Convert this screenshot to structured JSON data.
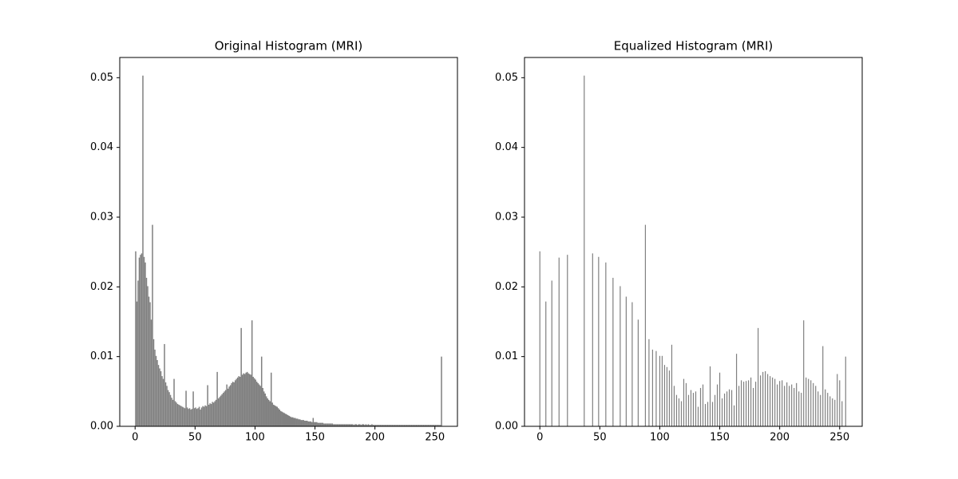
{
  "chart_data": [
    {
      "type": "histogram",
      "title": "Original Histogram (MRI)",
      "color": "#808080",
      "bins": [
        0,
        1,
        2,
        3,
        4,
        5,
        6,
        7,
        8,
        9,
        10,
        11,
        12,
        13,
        14,
        15,
        16,
        17,
        18,
        19,
        20,
        21,
        22,
        23,
        24,
        25,
        26,
        27,
        28,
        29,
        30,
        31,
        32,
        33,
        34,
        35,
        36,
        37,
        38,
        39,
        40,
        41,
        42,
        43,
        44,
        45,
        46,
        47,
        48,
        49,
        50,
        51,
        52,
        53,
        54,
        55,
        56,
        57,
        58,
        59,
        60,
        61,
        62,
        63,
        64,
        65,
        66,
        67,
        68,
        69,
        70,
        71,
        72,
        73,
        74,
        75,
        76,
        77,
        78,
        79,
        80,
        81,
        82,
        83,
        84,
        85,
        86,
        87,
        88,
        89,
        90,
        91,
        92,
        93,
        94,
        95,
        96,
        97,
        98,
        99,
        100,
        101,
        102,
        103,
        104,
        105,
        106,
        107,
        108,
        109,
        110,
        111,
        112,
        113,
        114,
        115,
        116,
        117,
        118,
        119,
        120,
        121,
        122,
        123,
        124,
        125,
        126,
        127,
        128,
        129,
        130,
        131,
        132,
        133,
        134,
        135,
        136,
        137,
        138,
        139,
        140,
        141,
        142,
        143,
        144,
        145,
        146,
        147,
        148,
        149,
        150,
        151,
        152,
        153,
        154,
        155,
        156,
        157,
        158,
        159,
        160,
        161,
        162,
        163,
        164,
        165,
        166,
        167,
        168,
        169,
        170,
        171,
        172,
        173,
        174,
        175,
        176,
        177,
        178,
        179,
        180,
        181,
        182,
        183,
        184,
        185,
        186,
        187,
        188,
        189,
        190,
        191,
        192,
        193,
        194,
        195,
        196,
        197,
        198,
        199,
        200,
        201,
        202,
        203,
        204,
        205,
        206,
        207,
        208,
        209,
        210,
        211,
        212,
        213,
        214,
        215,
        216,
        217,
        218,
        219,
        220,
        221,
        222,
        223,
        224,
        225,
        226,
        227,
        228,
        229,
        230,
        231,
        232,
        233,
        234,
        235,
        236,
        237,
        238,
        239,
        240,
        241,
        242,
        243,
        244,
        245,
        246,
        247,
        248,
        249,
        250,
        251,
        252,
        253,
        254,
        255,
        256
      ],
      "values": [
        0.0251,
        0.0179,
        0.0209,
        0.0242,
        0.0246,
        0.0248,
        0.0503,
        0.0243,
        0.0235,
        0.0213,
        0.0201,
        0.0186,
        0.0178,
        0.0153,
        0.0289,
        0.0125,
        0.011,
        0.0101,
        0.0095,
        0.0088,
        0.0083,
        0.0079,
        0.0072,
        0.0068,
        0.0118,
        0.0063,
        0.0058,
        0.0052,
        0.0049,
        0.0045,
        0.0041,
        0.0038,
        0.0068,
        0.0036,
        0.0034,
        0.0032,
        0.0031,
        0.003,
        0.0029,
        0.0028,
        0.0027,
        0.0026,
        0.0051,
        0.0027,
        0.0025,
        0.0026,
        0.0024,
        0.0025,
        0.005,
        0.0026,
        0.0027,
        0.0025,
        0.0026,
        0.0028,
        0.0024,
        0.0027,
        0.0029,
        0.0028,
        0.003,
        0.0029,
        0.0059,
        0.0031,
        0.0033,
        0.0032,
        0.0035,
        0.0034,
        0.0036,
        0.0038,
        0.0078,
        0.004,
        0.0042,
        0.0044,
        0.0046,
        0.0048,
        0.005,
        0.0052,
        0.006,
        0.0054,
        0.0057,
        0.0059,
        0.0062,
        0.0064,
        0.0063,
        0.0066,
        0.0068,
        0.007,
        0.0072,
        0.0071,
        0.0141,
        0.0074,
        0.0076,
        0.0075,
        0.0077,
        0.0078,
        0.0076,
        0.0075,
        0.0074,
        0.0152,
        0.0071,
        0.0069,
        0.0067,
        0.0064,
        0.0062,
        0.006,
        0.0058,
        0.01,
        0.0055,
        0.005,
        0.0047,
        0.0043,
        0.004,
        0.0038,
        0.0036,
        0.0077,
        0.0034,
        0.0031,
        0.003,
        0.0029,
        0.0028,
        0.0026,
        0.0024,
        0.0022,
        0.0021,
        0.002,
        0.0019,
        0.0018,
        0.0017,
        0.0016,
        0.0015,
        0.0014,
        0.0013,
        0.0013,
        0.0012,
        0.0012,
        0.0011,
        0.0011,
        0.001,
        0.001,
        0.0009,
        0.0009,
        0.0009,
        0.0008,
        0.0008,
        0.0008,
        0.0007,
        0.0007,
        0.0007,
        0.0006,
        0.0012,
        0.0006,
        0.0006,
        0.0006,
        0.0005,
        0.0005,
        0.0005,
        0.0005,
        0.0005,
        0.0004,
        0.0004,
        0.0004,
        0.0004,
        0.0004,
        0.0004,
        0.0004,
        0.0004,
        0.0003,
        0.0003,
        0.0003,
        0.0003,
        0.0003,
        0.0003,
        0.0003,
        0.0003,
        0.0003,
        0.0003,
        0.0003,
        0.0003,
        0.0003,
        0.0003,
        0.0003,
        0.0003,
        0.0003,
        0.0002,
        0.0003,
        0.0003,
        0.0002,
        0.0003,
        0.0003,
        0.0002,
        0.0003,
        0.0003,
        0.0002,
        0.0003,
        0.0002,
        0.0003,
        0.0002,
        0.0002,
        0.0003,
        0.0002,
        0.0002,
        0.0002,
        0.0002,
        0.0002,
        0.0002,
        0.0002,
        0.0002,
        0.0002,
        0.0002,
        0.0002,
        0.0002,
        0.0002,
        0.0002,
        0.0002,
        0.0002,
        0.0002,
        0.0002,
        0.0002,
        0.0002,
        0.0002,
        0.0002,
        0.0002,
        0.0002,
        0.0002,
        0.0002,
        0.0002,
        0.0002,
        0.0002,
        0.0002,
        0.0002,
        0.0002,
        0.0002,
        0.0002,
        0.0002,
        0.0002,
        0.0002,
        0.0002,
        0.0002,
        0.0002,
        0.0002,
        0.0002,
        0.0002,
        0.0002,
        0.0002,
        0.0002,
        0.0002,
        0.0002,
        0.0002,
        0.0002,
        0.0002,
        0.0002,
        0.0002,
        0.0002,
        0.0002,
        0.0002,
        0.0002,
        0.01
      ],
      "xlim": [
        -12.8,
        268.8
      ],
      "xticks": [
        0,
        50,
        100,
        150,
        200,
        250
      ],
      "ylim": [
        0,
        0.0529
      ],
      "yticks": [
        {
          "value": 0,
          "label": "0.00"
        },
        0.01,
        0.02,
        0.03,
        0.04,
        0.05
      ]
    },
    {
      "type": "bar",
      "title": "Equalized Histogram (MRI)",
      "color": "#808080",
      "x": [
        0,
        5,
        10,
        16,
        23,
        37,
        44,
        49,
        55,
        61,
        67,
        72,
        77,
        82,
        88,
        91,
        94,
        97,
        100,
        102,
        104,
        106,
        108,
        110,
        112,
        114,
        116,
        118,
        120,
        122,
        124,
        126,
        128,
        130,
        132,
        134,
        136,
        138,
        140,
        142,
        144,
        146,
        148,
        150,
        152,
        154,
        156,
        158,
        160,
        162,
        164,
        166,
        168,
        170,
        172,
        174,
        176,
        178,
        180,
        182,
        184,
        186,
        188,
        190,
        192,
        194,
        196,
        198,
        200,
        202,
        204,
        206,
        208,
        210,
        212,
        214,
        216,
        218,
        220,
        222,
        224,
        226,
        228,
        230,
        232,
        234,
        236,
        238,
        240,
        242,
        244,
        246,
        248,
        250,
        252,
        255
      ],
      "values": [
        0.0251,
        0.0179,
        0.0209,
        0.0242,
        0.0246,
        0.0503,
        0.0248,
        0.0243,
        0.0235,
        0.0213,
        0.0201,
        0.0186,
        0.0178,
        0.0153,
        0.0289,
        0.0125,
        0.011,
        0.0108,
        0.0101,
        0.0101,
        0.0088,
        0.0085,
        0.008,
        0.0117,
        0.0058,
        0.0045,
        0.004,
        0.0036,
        0.0068,
        0.0062,
        0.0045,
        0.0052,
        0.0048,
        0.005,
        0.0028,
        0.0055,
        0.006,
        0.0032,
        0.0035,
        0.0086,
        0.0035,
        0.0045,
        0.006,
        0.0077,
        0.004,
        0.0047,
        0.005,
        0.0053,
        0.0052,
        0.003,
        0.0104,
        0.0058,
        0.0066,
        0.0064,
        0.0065,
        0.0066,
        0.007,
        0.0055,
        0.0064,
        0.0141,
        0.0073,
        0.0078,
        0.0079,
        0.0075,
        0.0072,
        0.007,
        0.0068,
        0.006,
        0.0065,
        0.0066,
        0.0058,
        0.0063,
        0.0058,
        0.006,
        0.0055,
        0.0062,
        0.005,
        0.0048,
        0.0152,
        0.007,
        0.0068,
        0.0066,
        0.0062,
        0.0058,
        0.005,
        0.0045,
        0.0115,
        0.0053,
        0.0048,
        0.0043,
        0.004,
        0.0038,
        0.0075,
        0.0066,
        0.0036,
        0.01
      ],
      "xlim": [
        -12.8,
        268.8
      ],
      "xticks": [
        0,
        50,
        100,
        150,
        200,
        250
      ],
      "ylim": [
        0,
        0.0529
      ],
      "yticks": [
        {
          "value": 0,
          "label": "0.00"
        },
        0.01,
        0.02,
        0.03,
        0.04,
        0.05
      ]
    }
  ]
}
